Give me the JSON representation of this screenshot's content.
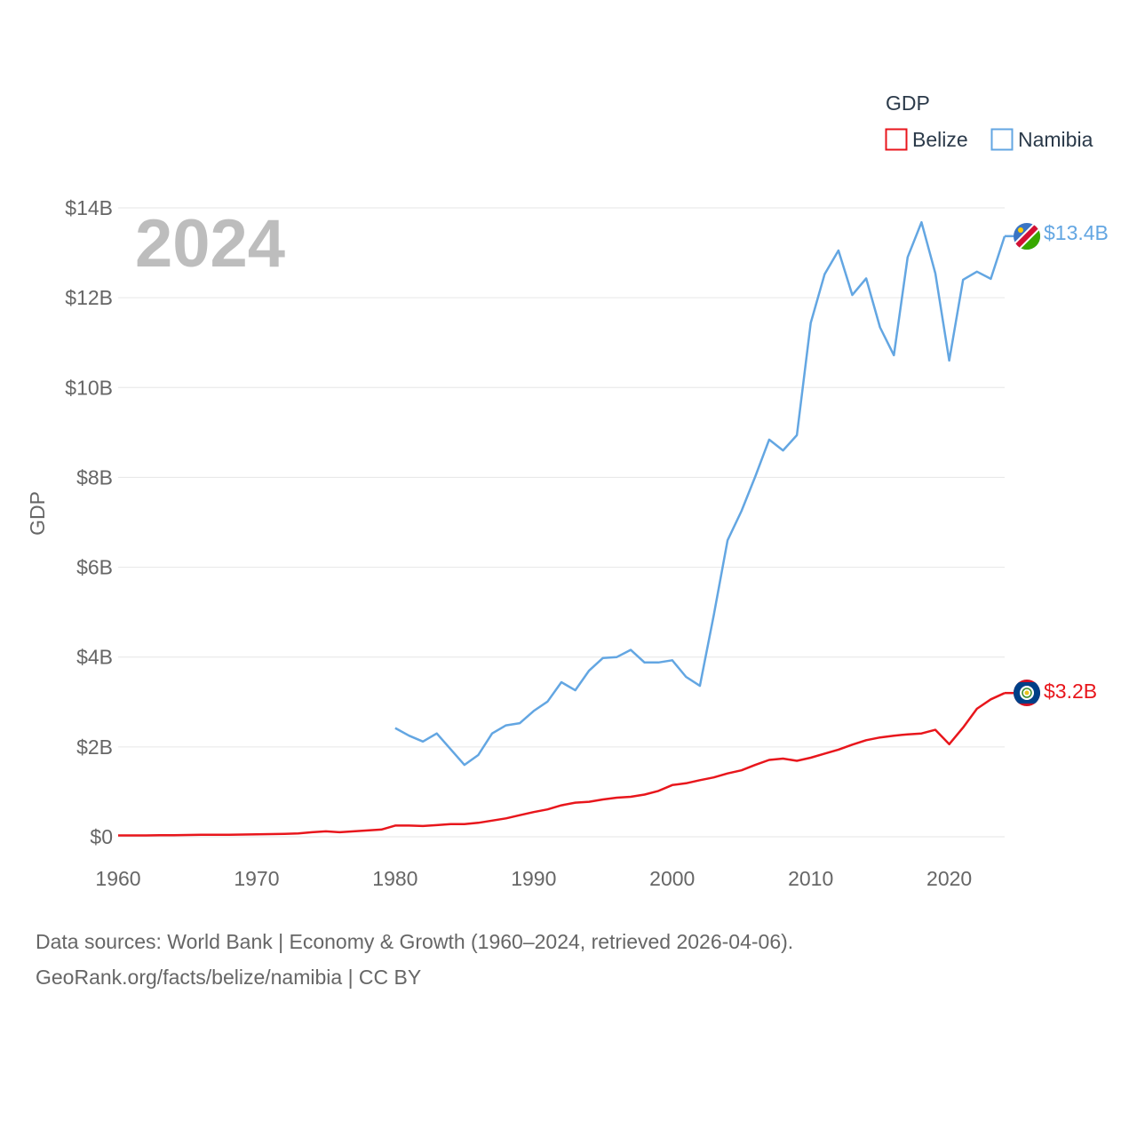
{
  "chart_data": {
    "type": "line",
    "title": "",
    "year_label": "2024",
    "xlabel": "",
    "ylabel": "GDP",
    "x_ticks": [
      1960,
      1970,
      1980,
      1990,
      2000,
      2010,
      2020
    ],
    "x_tick_labels": [
      "1960",
      "1970",
      "1980",
      "1990",
      "2000",
      "2010",
      "2020"
    ],
    "y_ticks": [
      0,
      2,
      4,
      6,
      8,
      10,
      12,
      14
    ],
    "y_tick_labels": [
      "$0",
      "$2B",
      "$4B",
      "$6B",
      "$8B",
      "$10B",
      "$12B",
      "$14B"
    ],
    "xlim": [
      1960,
      2024
    ],
    "ylim": [
      0,
      14
    ],
    "units": "billion USD",
    "legend": {
      "title": "GDP",
      "position": "top-right",
      "entries": [
        "Belize",
        "Namibia"
      ]
    },
    "series": [
      {
        "name": "Belize",
        "color": "#e8161c",
        "end_label": "$3.2B",
        "flag_icon": "belize-flag-icon",
        "x": [
          1960,
          1961,
          1962,
          1963,
          1964,
          1965,
          1966,
          1967,
          1968,
          1969,
          1970,
          1971,
          1972,
          1973,
          1974,
          1975,
          1976,
          1977,
          1978,
          1979,
          1980,
          1981,
          1982,
          1983,
          1984,
          1985,
          1986,
          1987,
          1988,
          1989,
          1990,
          1991,
          1992,
          1993,
          1994,
          1995,
          1996,
          1997,
          1998,
          1999,
          2000,
          2001,
          2002,
          2003,
          2004,
          2005,
          2006,
          2007,
          2008,
          2009,
          2010,
          2011,
          2012,
          2013,
          2014,
          2015,
          2016,
          2017,
          2018,
          2019,
          2020,
          2021,
          2022,
          2023,
          2024
        ],
        "values": [
          0.03,
          0.03,
          0.03,
          0.035,
          0.035,
          0.04,
          0.045,
          0.045,
          0.045,
          0.05,
          0.055,
          0.06,
          0.065,
          0.075,
          0.1,
          0.12,
          0.1,
          0.12,
          0.14,
          0.16,
          0.25,
          0.25,
          0.24,
          0.26,
          0.28,
          0.28,
          0.31,
          0.36,
          0.41,
          0.48,
          0.55,
          0.61,
          0.7,
          0.76,
          0.78,
          0.83,
          0.87,
          0.89,
          0.94,
          1.02,
          1.15,
          1.19,
          1.26,
          1.32,
          1.41,
          1.48,
          1.6,
          1.71,
          1.74,
          1.69,
          1.76,
          1.85,
          1.94,
          2.05,
          2.15,
          2.21,
          2.25,
          2.28,
          2.3,
          2.38,
          2.06,
          2.43,
          2.85,
          3.06,
          3.2
        ]
      },
      {
        "name": "Namibia",
        "color": "#63a6e2",
        "end_label": "$13.4B",
        "flag_icon": "namibia-flag-icon",
        "x": [
          1980,
          1981,
          1982,
          1983,
          1984,
          1985,
          1986,
          1987,
          1988,
          1989,
          1990,
          1991,
          1992,
          1993,
          1994,
          1995,
          1996,
          1997,
          1998,
          1999,
          2000,
          2001,
          2002,
          2003,
          2004,
          2005,
          2006,
          2007,
          2008,
          2009,
          2010,
          2011,
          2012,
          2013,
          2014,
          2015,
          2016,
          2017,
          2018,
          2019,
          2020,
          2021,
          2022,
          2023,
          2024
        ],
        "values": [
          2.42,
          2.25,
          2.12,
          2.3,
          1.95,
          1.6,
          1.82,
          2.3,
          2.48,
          2.53,
          2.8,
          3.01,
          3.44,
          3.26,
          3.7,
          3.98,
          4.0,
          4.16,
          3.88,
          3.88,
          3.93,
          3.56,
          3.36,
          4.93,
          6.6,
          7.25,
          8.02,
          8.84,
          8.6,
          8.94,
          11.44,
          12.52,
          13.05,
          12.06,
          12.43,
          11.34,
          10.72,
          12.9,
          13.68,
          12.54,
          10.6,
          12.4,
          12.58,
          12.42,
          13.37
        ]
      }
    ]
  },
  "footer": {
    "line1": "Data sources: World Bank | Economy & Growth (1960–2024, retrieved 2026-04-06).",
    "line2": "GeoRank.org/facts/belize/namibia | CC BY"
  }
}
